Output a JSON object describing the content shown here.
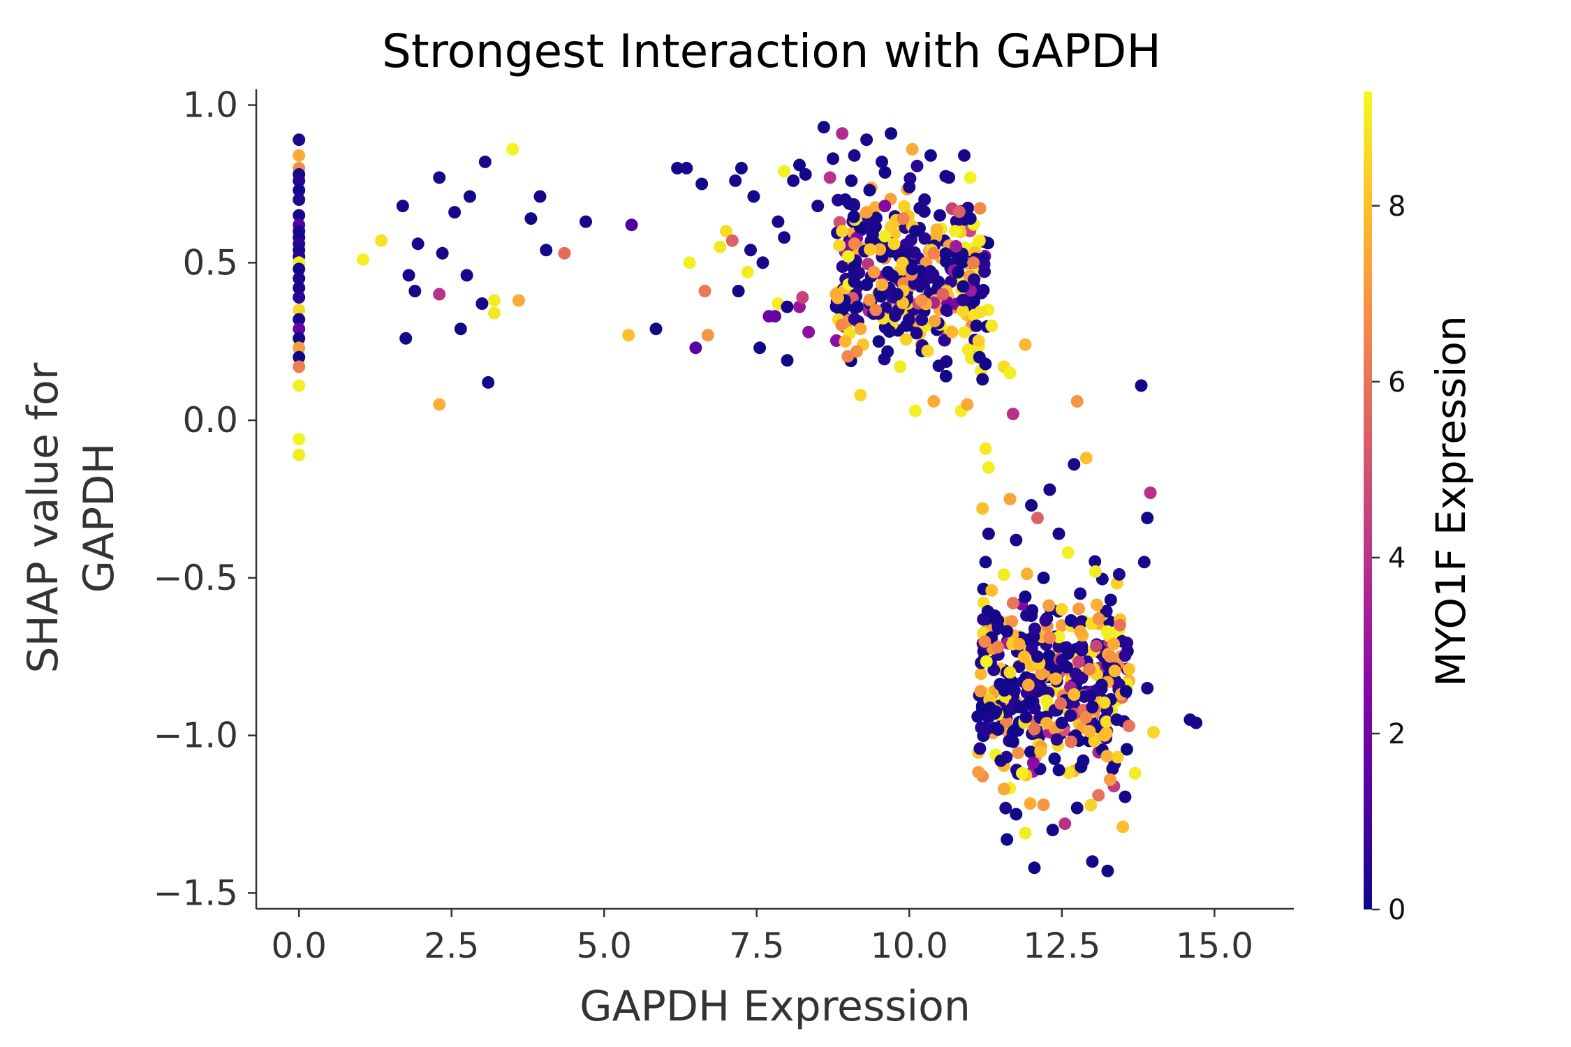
{
  "chart_data": {
    "type": "scatter",
    "title": "Strongest Interaction with GAPDH",
    "xlabel": "GAPDH Expression",
    "ylabel_lines": [
      "SHAP value for",
      "GAPDH"
    ],
    "xlim": [
      -0.7,
      16.3
    ],
    "ylim": [
      -1.55,
      1.05
    ],
    "xticks": [
      0.0,
      2.5,
      5.0,
      7.5,
      10.0,
      12.5,
      15.0
    ],
    "xtick_labels": [
      "0.0",
      "2.5",
      "5.0",
      "7.5",
      "10.0",
      "12.5",
      "15.0"
    ],
    "yticks": [
      1.0,
      0.5,
      0.0,
      -0.5,
      -1.0,
      -1.5
    ],
    "ytick_labels": [
      "1.0",
      "0.5",
      "0.0",
      "−0.5",
      "−1.0",
      "−1.5"
    ],
    "grid": false,
    "colorbar": {
      "label": "MYO1F Expression",
      "colormap": "plasma",
      "range": [
        0,
        9.3
      ],
      "ticks": [
        0,
        2,
        4,
        6,
        8
      ],
      "tick_labels": [
        "0",
        "2",
        "4",
        "6",
        "8"
      ]
    },
    "colormap_stops": [
      "#0d0887",
      "#5302a3",
      "#8b0aa5",
      "#b83289",
      "#db5c68",
      "#f48849",
      "#febd2a",
      "#f0f921"
    ],
    "points": [
      [
        0,
        0.89,
        0.3
      ],
      [
        0,
        0.84,
        7.5
      ],
      [
        0,
        0.8,
        6.8
      ],
      [
        0,
        0.78,
        0.2
      ],
      [
        0,
        0.76,
        0.5
      ],
      [
        0,
        0.73,
        0.1
      ],
      [
        0,
        0.7,
        0.4
      ],
      [
        0,
        0.65,
        0.2
      ],
      [
        0,
        0.62,
        1.5
      ],
      [
        0,
        0.6,
        0.3
      ],
      [
        0,
        0.58,
        0.1
      ],
      [
        0,
        0.56,
        0.6
      ],
      [
        0,
        0.54,
        0.2
      ],
      [
        0,
        0.52,
        0.4
      ],
      [
        0,
        0.5,
        9.0
      ],
      [
        0,
        0.48,
        0.1
      ],
      [
        0,
        0.45,
        0.3
      ],
      [
        0,
        0.42,
        0.2
      ],
      [
        0,
        0.39,
        0.5
      ],
      [
        0,
        0.35,
        8.5
      ],
      [
        0,
        0.32,
        0.2
      ],
      [
        0,
        0.29,
        1.8
      ],
      [
        0,
        0.26,
        0.1
      ],
      [
        0,
        0.23,
        7.2
      ],
      [
        0,
        0.2,
        0.0
      ],
      [
        0,
        0.17,
        6.3
      ],
      [
        0,
        0.11,
        9.1
      ],
      [
        0,
        -0.06,
        9.2
      ],
      [
        0,
        -0.11,
        9.0
      ],
      [
        1.05,
        0.51,
        9.1
      ],
      [
        1.35,
        0.57,
        8.8
      ],
      [
        1.7,
        0.68,
        0.1
      ],
      [
        1.8,
        0.46,
        0.2
      ],
      [
        1.9,
        0.41,
        0.1
      ],
      [
        1.95,
        0.56,
        0.2
      ],
      [
        1.75,
        0.26,
        0.1
      ],
      [
        2.3,
        0.77,
        0.1
      ],
      [
        2.35,
        0.53,
        0.2
      ],
      [
        2.3,
        0.4,
        4.0
      ],
      [
        2.3,
        0.05,
        7.6
      ],
      [
        2.55,
        0.66,
        0.2
      ],
      [
        2.65,
        0.29,
        0.1
      ],
      [
        2.75,
        0.46,
        0.2
      ],
      [
        2.8,
        0.71,
        0.1
      ],
      [
        3.0,
        0.37,
        0.1
      ],
      [
        3.05,
        0.82,
        0.2
      ],
      [
        3.1,
        0.12,
        0.1
      ],
      [
        3.2,
        0.38,
        9.0
      ],
      [
        3.2,
        0.34,
        8.9
      ],
      [
        3.5,
        0.86,
        9.2
      ],
      [
        3.6,
        0.38,
        7.5
      ],
      [
        3.8,
        0.64,
        0.1
      ],
      [
        3.95,
        0.71,
        0.2
      ],
      [
        4.05,
        0.54,
        0.1
      ],
      [
        4.35,
        0.53,
        5.8
      ],
      [
        4.7,
        0.63,
        0.2
      ],
      [
        5.4,
        0.27,
        8.0
      ],
      [
        5.45,
        0.62,
        1.2
      ],
      [
        5.85,
        0.29,
        0.1
      ],
      [
        6.2,
        0.8,
        0.1
      ],
      [
        6.35,
        0.8,
        0.2
      ],
      [
        6.4,
        0.5,
        9.1
      ],
      [
        6.5,
        0.23,
        1.5
      ],
      [
        6.6,
        0.75,
        0.1
      ],
      [
        6.65,
        0.41,
        6.2
      ],
      [
        6.7,
        0.27,
        7.0
      ],
      [
        6.9,
        0.55,
        8.9
      ],
      [
        7.0,
        0.6,
        8.7
      ],
      [
        7.1,
        0.57,
        5.5
      ],
      [
        7.15,
        0.76,
        0.2
      ],
      [
        7.2,
        0.41,
        0.1
      ],
      [
        7.25,
        0.8,
        0.1
      ],
      [
        7.35,
        0.47,
        9.0
      ],
      [
        7.4,
        0.54,
        0.2
      ],
      [
        7.45,
        0.71,
        0.1
      ],
      [
        7.55,
        0.23,
        0.1
      ],
      [
        7.6,
        0.5,
        0.2
      ],
      [
        7.7,
        0.33,
        2.0
      ],
      [
        7.8,
        0.33,
        1.8
      ],
      [
        7.85,
        0.37,
        9.0
      ],
      [
        7.85,
        0.63,
        0.2
      ],
      [
        7.95,
        0.58,
        0.1
      ],
      [
        7.95,
        0.79,
        9.1
      ],
      [
        8.0,
        0.36,
        0.2
      ],
      [
        8.0,
        0.19,
        0.1
      ],
      [
        8.1,
        0.76,
        0.2
      ],
      [
        8.2,
        0.81,
        0.1
      ],
      [
        8.2,
        0.36,
        3.0
      ],
      [
        8.25,
        0.39,
        4.5
      ],
      [
        8.3,
        0.78,
        0.1
      ],
      [
        8.35,
        0.28,
        2.8
      ],
      [
        8.5,
        0.68,
        0.2
      ],
      [
        8.6,
        0.93,
        0.1
      ],
      [
        8.7,
        0.77,
        4.0
      ],
      [
        8.75,
        0.83,
        0.1
      ],
      [
        8.8,
        0.4,
        7.6
      ],
      [
        8.9,
        0.91,
        3.8
      ],
      [
        8.9,
        0.6,
        8.5
      ],
      [
        8.95,
        0.25,
        7.8
      ],
      [
        8.95,
        0.7,
        0.2
      ],
      [
        9.0,
        0.52,
        9.1
      ],
      [
        9.05,
        0.76,
        0.1
      ],
      [
        9.1,
        0.84,
        0.3
      ],
      [
        9.1,
        0.44,
        0.2
      ],
      [
        9.15,
        0.36,
        0.1
      ],
      [
        9.2,
        0.29,
        7.5
      ],
      [
        9.2,
        0.08,
        8.5
      ],
      [
        9.3,
        0.89,
        0.2
      ],
      [
        9.3,
        0.66,
        7.3
      ],
      [
        9.35,
        0.73,
        0.1
      ],
      [
        9.4,
        0.59,
        0.2
      ],
      [
        9.45,
        0.35,
        6.5
      ],
      [
        9.5,
        0.25,
        0.1
      ],
      [
        9.55,
        0.82,
        0.2
      ],
      [
        9.6,
        0.68,
        2.5
      ],
      [
        9.65,
        0.47,
        0.1
      ],
      [
        9.7,
        0.91,
        0.1
      ],
      [
        9.75,
        0.56,
        8.5
      ],
      [
        9.8,
        0.4,
        0.2
      ],
      [
        9.85,
        0.17,
        9.0
      ],
      [
        9.9,
        0.64,
        6.5
      ],
      [
        9.95,
        0.3,
        0.1
      ],
      [
        10.0,
        0.74,
        0.2
      ],
      [
        10.05,
        0.86,
        7.5
      ],
      [
        10.05,
        0.48,
        0.2
      ],
      [
        10.1,
        0.03,
        9.1
      ],
      [
        10.1,
        0.6,
        0.1
      ],
      [
        10.2,
        0.38,
        7.0
      ],
      [
        10.25,
        0.7,
        0.3
      ],
      [
        10.3,
        0.22,
        8.5
      ],
      [
        10.35,
        0.84,
        0.1
      ],
      [
        10.4,
        0.53,
        6.5
      ],
      [
        10.4,
        0.06,
        7.5
      ],
      [
        10.5,
        0.65,
        0.2
      ],
      [
        10.55,
        0.4,
        5.5
      ],
      [
        10.6,
        0.14,
        0.1
      ],
      [
        10.65,
        0.77,
        0.2
      ],
      [
        10.7,
        0.28,
        7.8
      ],
      [
        10.75,
        0.6,
        9.1
      ],
      [
        10.8,
        0.47,
        0.1
      ],
      [
        10.85,
        0.03,
        9.0
      ],
      [
        10.9,
        0.84,
        0.2
      ],
      [
        10.95,
        0.05,
        7.5
      ],
      [
        11.0,
        0.64,
        0.1
      ],
      [
        11.0,
        0.77,
        9.2
      ],
      [
        11.05,
        0.5,
        6.4
      ],
      [
        11.1,
        0.3,
        0.2
      ],
      [
        11.15,
        0.57,
        9.0
      ],
      [
        11.15,
        0.2,
        0.1
      ],
      [
        11.2,
        0.13,
        0.2
      ],
      [
        11.25,
        -0.09,
        9.0
      ],
      [
        11.35,
        0.3,
        8.9
      ],
      [
        11.55,
        0.17,
        8.7
      ],
      [
        11.65,
        0.15,
        9.1
      ],
      [
        11.7,
        0.02,
        4.0
      ],
      [
        11.9,
        0.24,
        7.8
      ],
      [
        11.2,
        -0.28,
        8.0
      ],
      [
        11.25,
        -0.45,
        0.1
      ],
      [
        11.3,
        -0.36,
        0.2
      ],
      [
        11.3,
        -0.15,
        9.1
      ],
      [
        11.35,
        -0.54,
        8.0
      ],
      [
        11.4,
        -0.62,
        0.1
      ],
      [
        11.4,
        -0.93,
        0.2
      ],
      [
        11.45,
        -0.72,
        6.5
      ],
      [
        11.5,
        -0.84,
        0.1
      ],
      [
        11.5,
        -1.08,
        0.2
      ],
      [
        11.55,
        -0.49,
        9.0
      ],
      [
        11.55,
        -1.17,
        7.5
      ],
      [
        11.6,
        -0.67,
        0.2
      ],
      [
        11.6,
        -1.33,
        0.1
      ],
      [
        11.65,
        -0.25,
        7.4
      ],
      [
        11.65,
        -0.8,
        8.6
      ],
      [
        11.7,
        -0.58,
        6.0
      ],
      [
        11.7,
        -1.02,
        0.1
      ],
      [
        11.75,
        -0.38,
        0.2
      ],
      [
        11.75,
        -1.25,
        0.1
      ],
      [
        11.8,
        -0.71,
        7.6
      ],
      [
        11.8,
        -0.91,
        0.2
      ],
      [
        11.85,
        -1.12,
        9.1
      ],
      [
        11.9,
        -0.56,
        0.1
      ],
      [
        11.9,
        -1.31,
        9.0
      ],
      [
        11.95,
        -0.84,
        7.5
      ],
      [
        12.0,
        -0.62,
        0.2
      ],
      [
        12.0,
        -0.27,
        0.1
      ],
      [
        12.05,
        -1.42,
        0.1
      ],
      [
        12.05,
        -0.98,
        6.0
      ],
      [
        12.1,
        -0.31,
        5.5
      ],
      [
        12.1,
        -0.75,
        0.2
      ],
      [
        12.15,
        -1.05,
        8.0
      ],
      [
        12.2,
        -0.5,
        0.1
      ],
      [
        12.2,
        -1.22,
        7.0
      ],
      [
        12.25,
        -0.89,
        9.0
      ],
      [
        12.3,
        -0.22,
        0.2
      ],
      [
        12.3,
        -0.69,
        6.5
      ],
      [
        12.35,
        -1.3,
        0.1
      ],
      [
        12.4,
        -0.82,
        7.7
      ],
      [
        12.45,
        -0.36,
        0.2
      ],
      [
        12.45,
        -1.11,
        0.1
      ],
      [
        12.5,
        -0.6,
        8.5
      ],
      [
        12.5,
        -0.96,
        0.2
      ],
      [
        12.55,
        -1.28,
        4.0
      ],
      [
        12.6,
        -0.74,
        0.1
      ],
      [
        12.6,
        -0.42,
        9.1
      ],
      [
        12.65,
        -1.02,
        6.0
      ],
      [
        12.7,
        -0.14,
        0.2
      ],
      [
        12.7,
        -0.87,
        8.0
      ],
      [
        12.75,
        0.06,
        7.0
      ],
      [
        12.75,
        -1.23,
        0.1
      ],
      [
        12.8,
        -0.55,
        0.2
      ],
      [
        12.8,
        -0.67,
        7.5
      ],
      [
        12.85,
        -1.08,
        0.1
      ],
      [
        12.9,
        -0.12,
        8.0
      ],
      [
        12.95,
        -0.79,
        6.5
      ],
      [
        13.0,
        -1.4,
        0.1
      ],
      [
        13.0,
        -0.91,
        0.2
      ],
      [
        13.05,
        -0.48,
        9.0
      ],
      [
        13.1,
        -0.63,
        7.0
      ],
      [
        13.1,
        -1.19,
        6.0
      ],
      [
        13.15,
        -0.84,
        0.2
      ],
      [
        13.2,
        -1.0,
        8.0
      ],
      [
        13.25,
        -1.43,
        0.1
      ],
      [
        13.3,
        -0.57,
        0.1
      ],
      [
        13.35,
        -0.71,
        7.5
      ],
      [
        13.4,
        -0.95,
        0.2
      ],
      [
        13.45,
        -0.65,
        6.0
      ],
      [
        13.5,
        -1.29,
        8.0
      ],
      [
        13.55,
        -0.86,
        0.1
      ],
      [
        13.6,
        -0.79,
        8.0
      ],
      [
        13.6,
        -0.97,
        6.0
      ],
      [
        13.7,
        -1.12,
        9.0
      ],
      [
        13.8,
        0.11,
        0.1
      ],
      [
        13.85,
        -0.45,
        0.2
      ],
      [
        13.9,
        -0.31,
        0.1
      ],
      [
        13.95,
        -0.23,
        4.0
      ],
      [
        13.9,
        -0.85,
        0.2
      ],
      [
        14.0,
        -0.99,
        8.5
      ],
      [
        14.6,
        -0.95,
        0.1
      ],
      [
        14.7,
        -0.96,
        0.2
      ]
    ],
    "cluster_regions": [
      {
        "x": [
          8.8,
          11.3
        ],
        "y": [
          0.05,
          0.85
        ],
        "n": 330,
        "seed": 7
      },
      {
        "x": [
          11.1,
          13.6
        ],
        "y": [
          -1.3,
          -0.4
        ],
        "n": 360,
        "seed": 13
      }
    ]
  }
}
